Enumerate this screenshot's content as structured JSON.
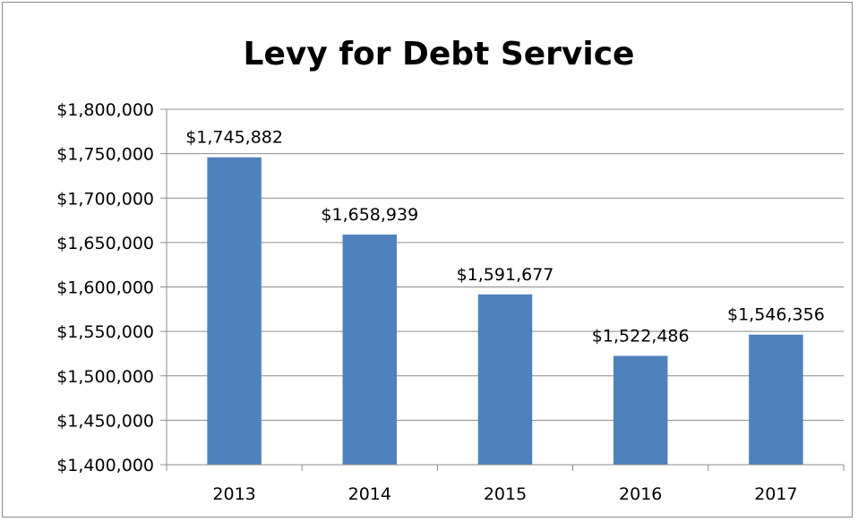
{
  "chart_data": {
    "type": "bar",
    "title": "Levy for Debt Service",
    "xlabel": "",
    "ylabel": "",
    "categories": [
      "2013",
      "2014",
      "2015",
      "2016",
      "2017"
    ],
    "values": [
      1745882,
      1658939,
      1591677,
      1522486,
      1546356
    ],
    "data_labels": [
      "$1,745,882",
      "$1,658,939",
      "$1,591,677",
      "$1,522,486",
      "$1,546,356"
    ],
    "ylim": [
      1400000,
      1800000
    ],
    "yticks": [
      1400000,
      1450000,
      1500000,
      1550000,
      1600000,
      1650000,
      1700000,
      1750000,
      1800000
    ],
    "ytick_labels": [
      "$1,400,000",
      "$1,450,000",
      "$1,500,000",
      "$1,550,000",
      "$1,600,000",
      "$1,650,000",
      "$1,700,000",
      "$1,750,000",
      "$1,800,000"
    ],
    "grid": true,
    "legend": "none",
    "colors": {
      "bar": "#4f81bd",
      "grid": "#8c8c8c",
      "axis": "#8c8c8c",
      "text": "#000000"
    }
  }
}
